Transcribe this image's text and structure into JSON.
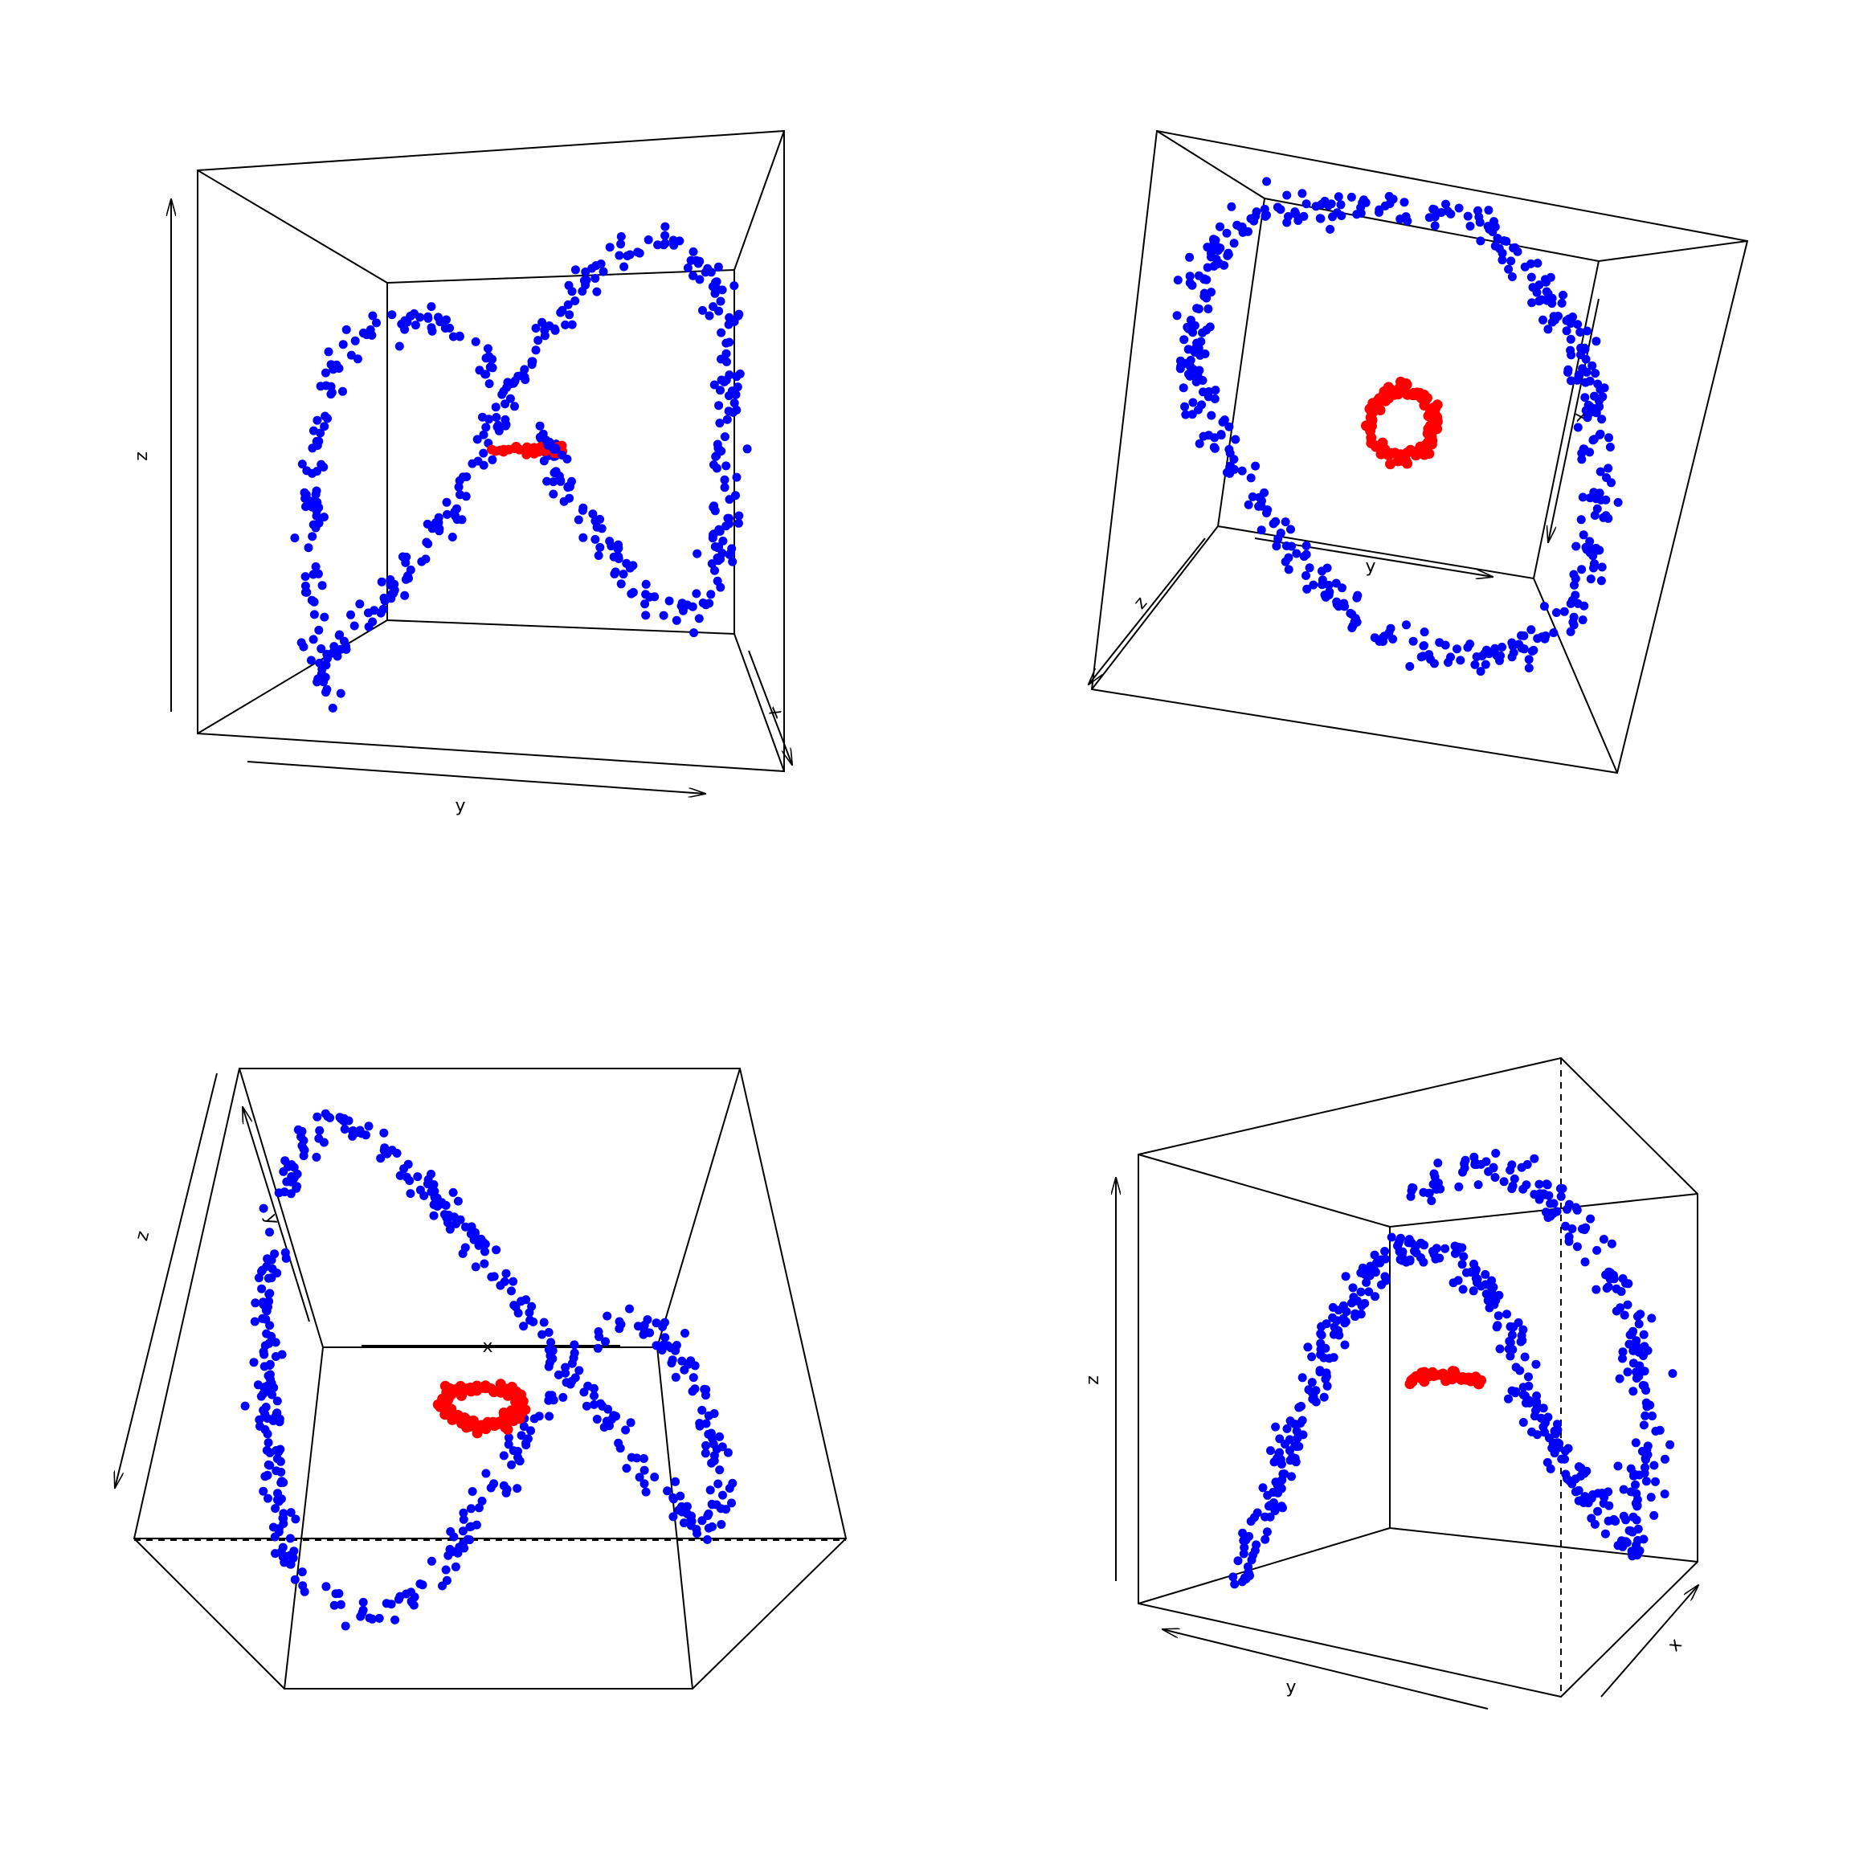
{
  "colors": {
    "outer_points": "#0000ff",
    "inner_points": "#ff0000",
    "box_lines": "#000000",
    "background": "#ffffff"
  },
  "chart_data": [
    {
      "type": "scatter",
      "title": "",
      "axis_labels": {
        "x": "x",
        "y": "y",
        "z": "z"
      },
      "grid": false,
      "series": [
        {
          "color": "blue",
          "shape": "figure-eight band",
          "point_count_approx": 500
        },
        {
          "color": "red",
          "shape": "small ring seen edge-on",
          "point_count_approx": 100
        }
      ]
    },
    {
      "type": "scatter",
      "title": "",
      "axis_labels": {
        "x": "x",
        "y": "y",
        "z": "z"
      },
      "grid": false,
      "series": [
        {
          "color": "blue",
          "shape": "large ring",
          "point_count_approx": 500
        },
        {
          "color": "red",
          "shape": "small ring (top view)",
          "point_count_approx": 100
        }
      ]
    },
    {
      "type": "scatter",
      "title": "",
      "axis_labels": {
        "x": "x",
        "y": "y",
        "z": "z"
      },
      "grid": false,
      "series": [
        {
          "color": "blue",
          "shape": "figure-eight band",
          "point_count_approx": 500
        },
        {
          "color": "red",
          "shape": "small ring (oblique view)",
          "point_count_approx": 100
        }
      ]
    },
    {
      "type": "scatter",
      "title": "",
      "axis_labels": {
        "x": "x",
        "y": "y",
        "z": "z"
      },
      "grid": false,
      "series": [
        {
          "color": "blue",
          "shape": "arch band",
          "point_count_approx": 500
        },
        {
          "color": "red",
          "shape": "small arc",
          "point_count_approx": 100
        }
      ]
    }
  ]
}
